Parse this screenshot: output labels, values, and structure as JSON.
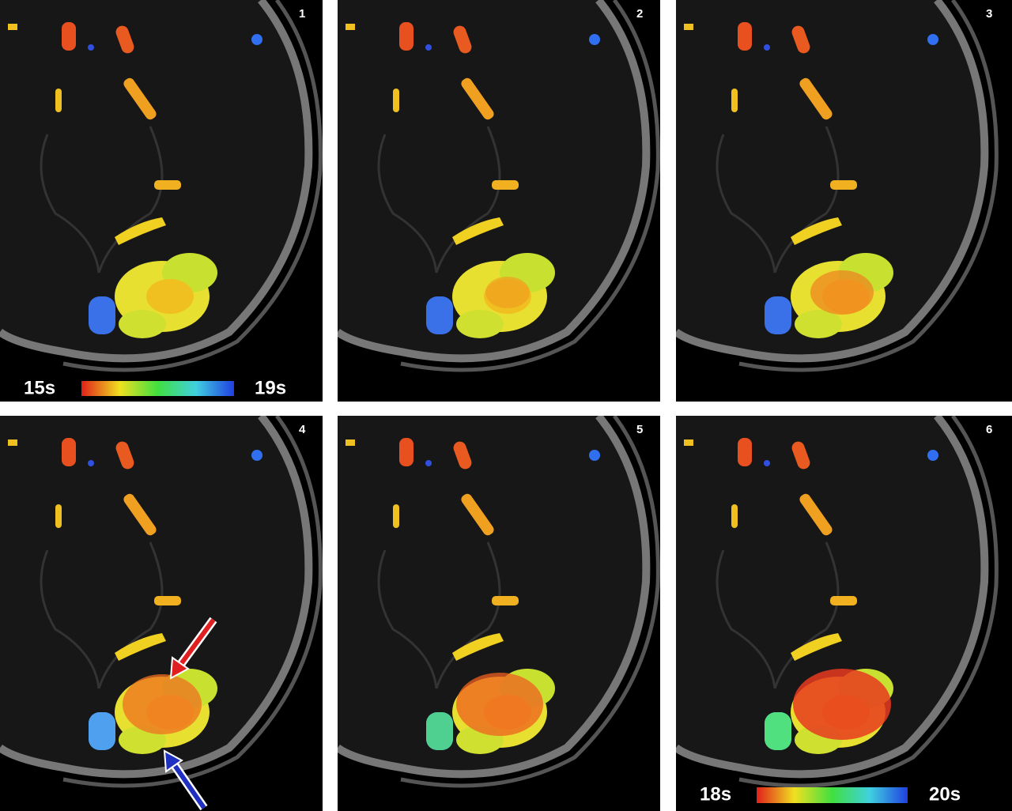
{
  "panels": [
    {
      "label": "1"
    },
    {
      "label": "2"
    },
    {
      "label": "3"
    },
    {
      "label": "4"
    },
    {
      "label": "5"
    },
    {
      "label": "6"
    }
  ],
  "colorbars": [
    {
      "min_label": "15s",
      "max_label": "19s"
    },
    {
      "min_label": "18s",
      "max_label": "20s"
    }
  ]
}
